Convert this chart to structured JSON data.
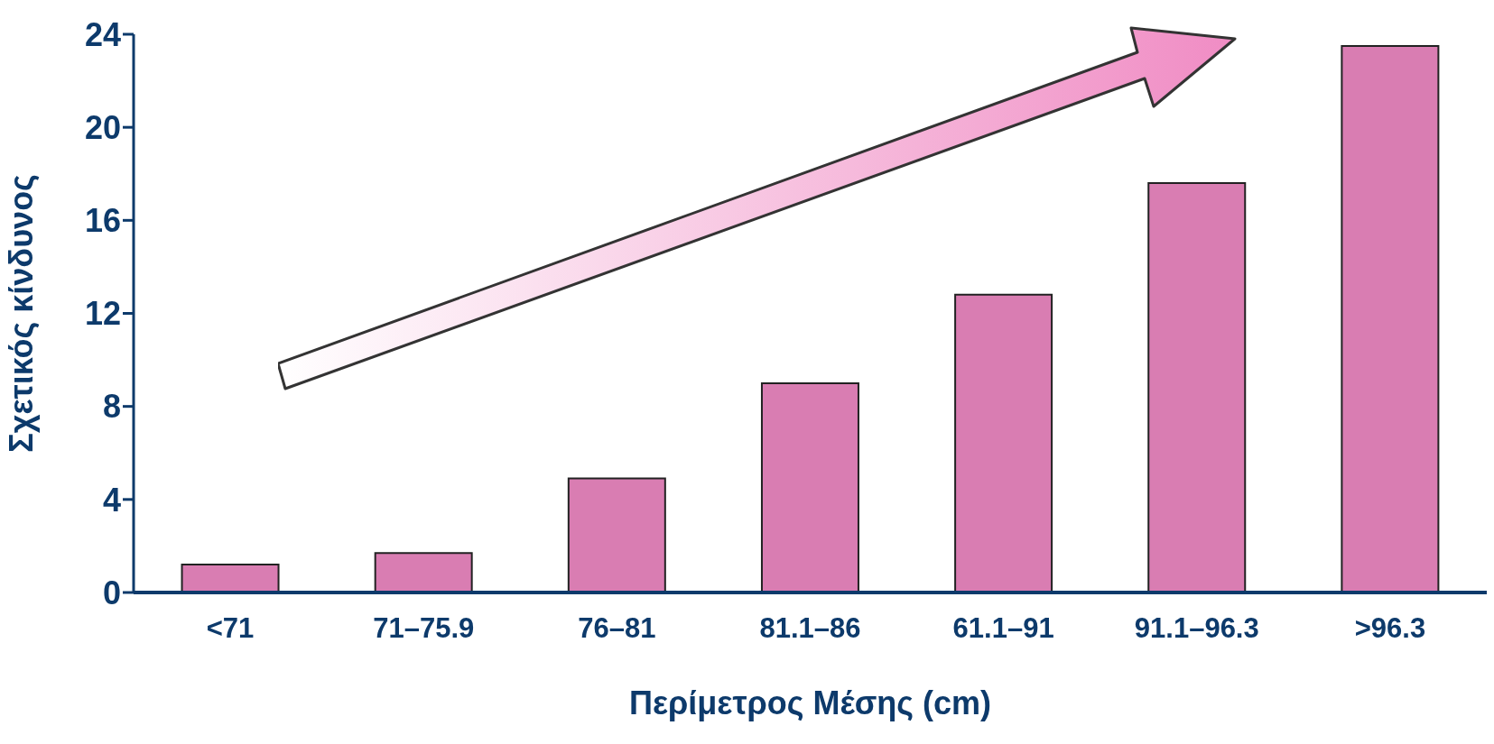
{
  "chart_data": {
    "type": "bar",
    "xlabel": "Περίμετρος Μέσης (cm)",
    "ylabel": "Σχετικός κίνδυνος",
    "categories": [
      "<71",
      "71–75.9",
      "76–81",
      "81.1–86",
      "61.1–91",
      "91.1–96.3",
      ">96.3"
    ],
    "values": [
      1.2,
      1.7,
      4.9,
      9.0,
      12.8,
      17.6,
      23.5
    ],
    "color": "#d97db2",
    "ylim": [
      0,
      24
    ],
    "yticks": [
      0,
      4,
      8,
      12,
      16,
      20,
      24
    ],
    "grid": false,
    "legend": false
  }
}
